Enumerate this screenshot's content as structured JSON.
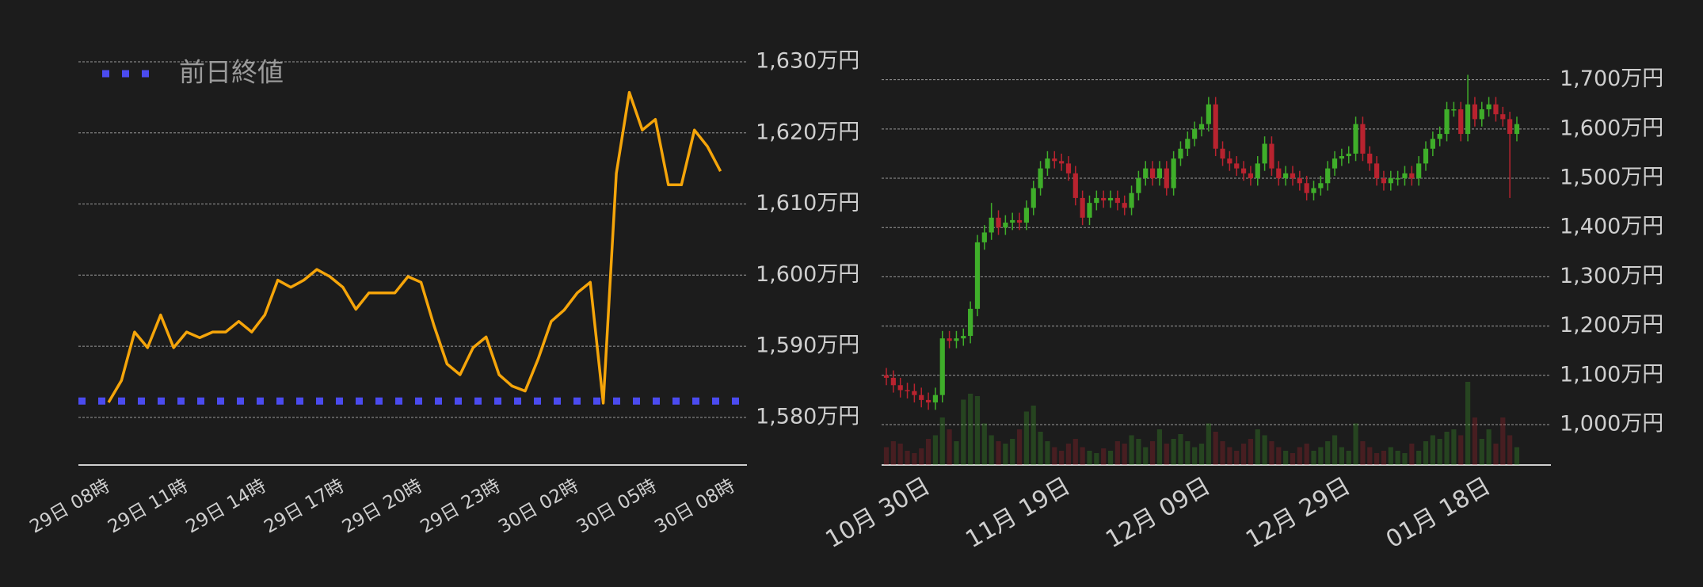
{
  "chart_data": [
    {
      "type": "line",
      "color": "#f5a50a",
      "legend": "top-left",
      "categories": [
        "29日 08時",
        null,
        null,
        null,
        null,
        null,
        "29日 11時",
        null,
        null,
        null,
        null,
        null,
        "29日 14時",
        null,
        null,
        null,
        null,
        null,
        "29日 17時",
        null,
        null,
        null,
        null,
        null,
        "29日 20時",
        null,
        null,
        null,
        null,
        null,
        "29日 23時",
        null,
        null,
        null,
        null,
        null,
        "30日 02時",
        null,
        null,
        null,
        null,
        null,
        "30日 05時",
        null,
        null,
        null,
        null,
        null,
        "30日 08時"
      ],
      "values": [
        1582.1,
        1585.2,
        1592,
        1589.8,
        1594.4,
        1589.8,
        1592,
        1591.2,
        1592,
        1592,
        1593.5,
        1592,
        1594.4,
        1599.3,
        1598.3,
        1599.3,
        1600.8,
        1599.8,
        1598.3,
        1595.2,
        1597.5,
        1597.5,
        1597.5,
        1599.8,
        1599,
        1592.9,
        1587.5,
        1586,
        1589.8,
        1591.3,
        1586,
        1584.4,
        1583.7,
        1588.2,
        1593.5,
        1595.1,
        1597.5,
        1599,
        1582,
        1614.3,
        1625.7,
        1620.4,
        1621.9,
        1612.7,
        1612.7,
        1620.4,
        1618.1,
        1614.6,
        null
      ],
      "reference": {
        "name": "前日終値",
        "value": 1582.3,
        "color": "#4b4bf0"
      },
      "ylim": [
        1573.3,
        1631
      ],
      "yticks": [
        {
          "value": 1580,
          "label": "1,580万円"
        },
        {
          "value": 1590,
          "label": "1,590万円"
        },
        {
          "value": 1600,
          "label": "1,600万円"
        },
        {
          "value": 1610,
          "label": "1,610万円"
        },
        {
          "value": 1620,
          "label": "1,620万円"
        },
        {
          "value": 1630,
          "label": "1,630万円"
        }
      ],
      "grid": true
    },
    {
      "type": "candlestick",
      "up_color": "#3fae2a",
      "down_color": "#b8232f",
      "categories": [
        null,
        null,
        null,
        null,
        null,
        null,
        "10月 30日",
        null,
        null,
        null,
        null,
        null,
        null,
        null,
        null,
        null,
        null,
        null,
        null,
        null,
        null,
        null,
        null,
        null,
        null,
        null,
        "11月 19日",
        null,
        null,
        null,
        null,
        null,
        null,
        null,
        null,
        null,
        null,
        null,
        null,
        null,
        null,
        null,
        null,
        null,
        null,
        null,
        "12月 09日",
        null,
        null,
        null,
        null,
        null,
        null,
        null,
        null,
        null,
        null,
        null,
        null,
        null,
        null,
        null,
        null,
        null,
        null,
        null,
        "12月 29日",
        null,
        null,
        null,
        null,
        null,
        null,
        null,
        null,
        null,
        null,
        null,
        null,
        null,
        null,
        null,
        null,
        null,
        null,
        null,
        "01月 18日",
        null,
        null,
        null,
        null
      ],
      "open": [
        1100,
        1095,
        1080,
        1070,
        1068,
        1060,
        1050,
        1045,
        1060,
        1175,
        1170,
        1175,
        1180,
        1235,
        1370,
        1390,
        1420,
        1400,
        1410,
        1415,
        1410,
        1440,
        1480,
        1520,
        1540,
        1535,
        1530,
        1510,
        1460,
        1420,
        1450,
        1460,
        1455,
        1460,
        1450,
        1440,
        1470,
        1500,
        1520,
        1500,
        1520,
        1480,
        1540,
        1560,
        1580,
        1600,
        1610,
        1650,
        1560,
        1540,
        1530,
        1520,
        1510,
        1500,
        1530,
        1570,
        1520,
        1500,
        1510,
        1500,
        1490,
        1470,
        1480,
        1490,
        1520,
        1540,
        1545,
        1550,
        1610,
        1550,
        1530,
        1500,
        1490,
        1500,
        1500,
        1510,
        1500,
        1530,
        1560,
        1580,
        1590,
        1640,
        1640,
        1590,
        1650,
        1620,
        1640,
        1650,
        1630,
        1620,
        1590
      ],
      "high": [
        1115,
        1110,
        1095,
        1085,
        1083,
        1075,
        1065,
        1075,
        1190,
        1190,
        1190,
        1195,
        1250,
        1385,
        1405,
        1450,
        1435,
        1425,
        1430,
        1430,
        1455,
        1495,
        1535,
        1555,
        1555,
        1550,
        1545,
        1525,
        1475,
        1465,
        1475,
        1475,
        1475,
        1475,
        1465,
        1485,
        1515,
        1535,
        1535,
        1535,
        1535,
        1555,
        1575,
        1595,
        1615,
        1625,
        1665,
        1665,
        1575,
        1555,
        1545,
        1535,
        1525,
        1545,
        1585,
        1585,
        1535,
        1525,
        1525,
        1515,
        1505,
        1495,
        1505,
        1535,
        1555,
        1560,
        1565,
        1625,
        1625,
        1565,
        1545,
        1515,
        1515,
        1515,
        1525,
        1525,
        1545,
        1575,
        1595,
        1605,
        1655,
        1655,
        1655,
        1710,
        1665,
        1655,
        1665,
        1665,
        1645,
        1635,
        1625
      ],
      "low": [
        1080,
        1065,
        1055,
        1053,
        1045,
        1035,
        1030,
        1030,
        1045,
        1155,
        1155,
        1160,
        1165,
        1220,
        1355,
        1375,
        1385,
        1385,
        1395,
        1395,
        1395,
        1425,
        1465,
        1505,
        1520,
        1515,
        1495,
        1445,
        1405,
        1405,
        1435,
        1440,
        1440,
        1435,
        1425,
        1425,
        1455,
        1485,
        1485,
        1485,
        1465,
        1465,
        1525,
        1545,
        1565,
        1585,
        1595,
        1545,
        1525,
        1515,
        1505,
        1495,
        1485,
        1485,
        1515,
        1505,
        1485,
        1485,
        1485,
        1475,
        1455,
        1455,
        1465,
        1475,
        1505,
        1525,
        1530,
        1535,
        1535,
        1515,
        1485,
        1475,
        1475,
        1485,
        1485,
        1485,
        1485,
        1515,
        1545,
        1565,
        1575,
        1625,
        1575,
        1575,
        1605,
        1605,
        1625,
        1615,
        1605,
        1460,
        1575
      ],
      "close": [
        1095,
        1080,
        1070,
        1068,
        1060,
        1050,
        1045,
        1060,
        1175,
        1170,
        1175,
        1180,
        1235,
        1370,
        1390,
        1420,
        1400,
        1410,
        1415,
        1410,
        1440,
        1480,
        1520,
        1540,
        1535,
        1530,
        1510,
        1460,
        1420,
        1450,
        1460,
        1455,
        1460,
        1450,
        1440,
        1470,
        1500,
        1520,
        1500,
        1520,
        1480,
        1540,
        1560,
        1580,
        1600,
        1610,
        1650,
        1560,
        1540,
        1530,
        1520,
        1510,
        1500,
        1530,
        1570,
        1520,
        1500,
        1510,
        1500,
        1490,
        1470,
        1480,
        1490,
        1520,
        1540,
        1545,
        1550,
        1610,
        1550,
        1530,
        1500,
        1490,
        1500,
        1500,
        1510,
        1500,
        1530,
        1560,
        1580,
        1590,
        1640,
        1640,
        1590,
        1650,
        1620,
        1640,
        1650,
        1630,
        1620,
        1590,
        1610
      ],
      "volume": [
        15,
        20,
        18,
        12,
        10,
        14,
        22,
        25,
        40,
        30,
        20,
        55,
        60,
        58,
        35,
        25,
        20,
        18,
        22,
        30,
        45,
        50,
        28,
        20,
        15,
        12,
        18,
        22,
        15,
        12,
        10,
        14,
        12,
        20,
        18,
        25,
        22,
        15,
        20,
        30,
        18,
        22,
        26,
        20,
        15,
        18,
        35,
        28,
        20,
        15,
        12,
        18,
        22,
        30,
        25,
        20,
        15,
        12,
        10,
        15,
        18,
        12,
        15,
        20,
        25,
        15,
        12,
        35,
        20,
        15,
        10,
        12,
        15,
        12,
        10,
        18,
        12,
        20,
        25,
        22,
        28,
        30,
        25,
        70,
        40,
        22,
        30,
        18,
        40,
        25,
        15
      ],
      "volume_lim": [
        0,
        100
      ],
      "ylim": [
        918,
        1730
      ],
      "yticks": [
        {
          "value": 1000,
          "label": "1,000万円"
        },
        {
          "value": 1100,
          "label": "1,100万円"
        },
        {
          "value": 1200,
          "label": "1,200万円"
        },
        {
          "value": 1300,
          "label": "1,300万円"
        },
        {
          "value": 1400,
          "label": "1,400万円"
        },
        {
          "value": 1500,
          "label": "1,500万円"
        },
        {
          "value": 1600,
          "label": "1,600万円"
        },
        {
          "value": 1700,
          "label": "1,700万円"
        }
      ],
      "grid": true
    }
  ]
}
